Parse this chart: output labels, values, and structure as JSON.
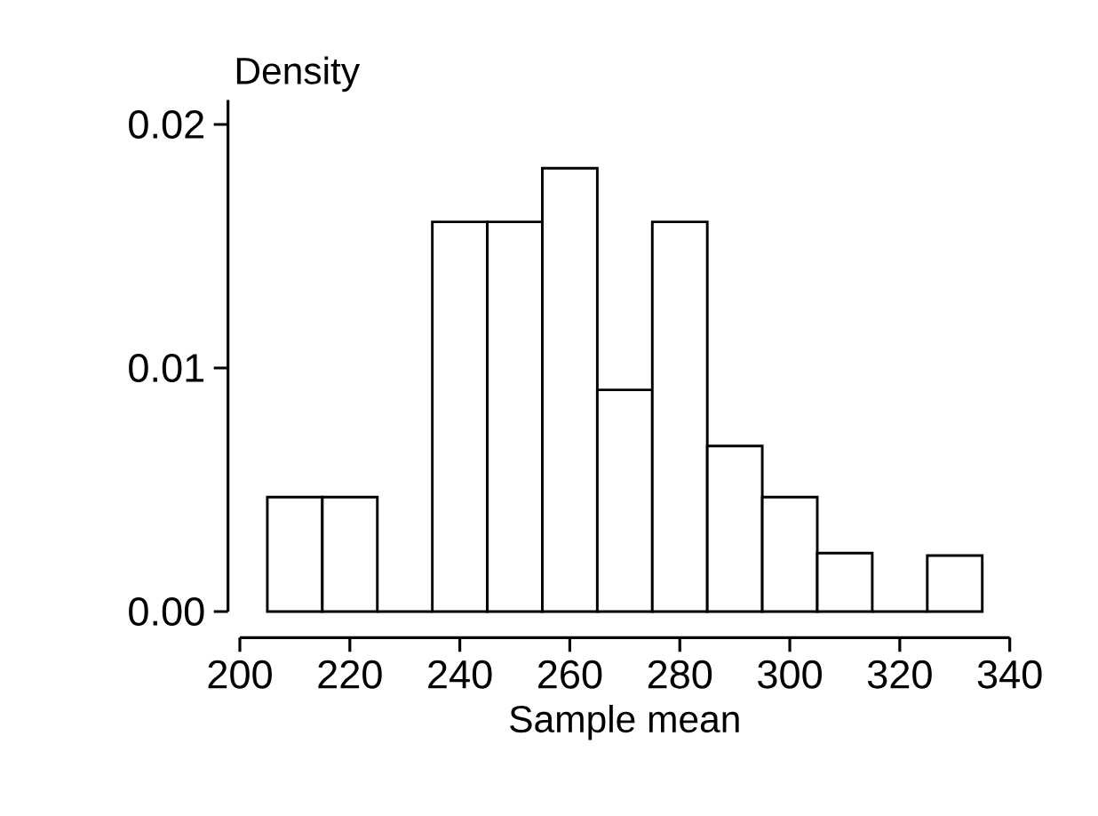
{
  "chart_data": {
    "type": "histogram",
    "xlabel": "Sample mean",
    "ylabel": "Density",
    "bins": [
      205,
      215,
      225,
      235,
      245,
      255,
      265,
      275,
      285,
      295,
      305,
      315,
      325,
      335
    ],
    "values": [
      0.0047,
      0.0047,
      0,
      0.016,
      0.016,
      0.0182,
      0.0091,
      0.016,
      0.0068,
      0.0047,
      0.0024,
      0,
      0.0023
    ],
    "color": "#000000",
    "xlim": [
      200,
      340
    ],
    "xticks": [
      200,
      220,
      240,
      260,
      280,
      300,
      320,
      340
    ],
    "ylim": [
      0,
      0.021
    ],
    "yticks": [
      {
        "value": 0,
        "label": "0.00"
      },
      {
        "value": 0.01,
        "label": "0.01"
      },
      {
        "value": 0.02,
        "label": "0.02"
      }
    ],
    "grid": false
  }
}
